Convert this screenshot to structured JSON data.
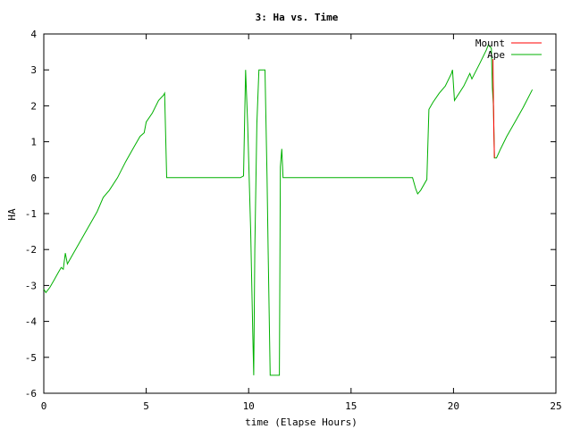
{
  "chart_data": {
    "type": "line",
    "title": "3: Ha vs. Time",
    "xlabel": "time (Elapse Hours)",
    "ylabel": "HA",
    "xlim": [
      0,
      25
    ],
    "ylim": [
      -6,
      4
    ],
    "xticks": [
      0,
      5,
      10,
      15,
      20,
      25
    ],
    "yticks": [
      -6,
      -5,
      -4,
      -3,
      -2,
      -1,
      0,
      1,
      2,
      3,
      4
    ],
    "grid": false,
    "legend_position": "top-right",
    "series": [
      {
        "name": "Mount",
        "color": "#ff0000",
        "points": [
          [
            21.93,
            3.3
          ],
          [
            21.95,
            2.1
          ],
          [
            21.97,
            1.3
          ],
          [
            22.0,
            0.55
          ]
        ]
      },
      {
        "name": "Ape",
        "color": "#00b000",
        "points": [
          [
            0.0,
            -3.1
          ],
          [
            0.1,
            -3.2
          ],
          [
            0.3,
            -3.05
          ],
          [
            0.5,
            -2.85
          ],
          [
            0.7,
            -2.65
          ],
          [
            0.85,
            -2.5
          ],
          [
            0.95,
            -2.55
          ],
          [
            1.05,
            -2.1
          ],
          [
            1.15,
            -2.4
          ],
          [
            1.4,
            -2.15
          ],
          [
            1.8,
            -1.75
          ],
          [
            2.2,
            -1.35
          ],
          [
            2.6,
            -0.95
          ],
          [
            2.9,
            -0.55
          ],
          [
            3.2,
            -0.35
          ],
          [
            3.6,
            0.0
          ],
          [
            4.0,
            0.45
          ],
          [
            4.4,
            0.85
          ],
          [
            4.7,
            1.15
          ],
          [
            4.9,
            1.25
          ],
          [
            5.0,
            1.55
          ],
          [
            5.3,
            1.8
          ],
          [
            5.6,
            2.15
          ],
          [
            5.85,
            2.3
          ],
          [
            5.9,
            2.35
          ],
          [
            6.0,
            0.0
          ],
          [
            8.5,
            0.0
          ],
          [
            9.6,
            0.0
          ],
          [
            9.75,
            0.05
          ],
          [
            9.85,
            3.0
          ],
          [
            9.95,
            1.5
          ],
          [
            10.1,
            -1.5
          ],
          [
            10.2,
            -4.3
          ],
          [
            10.25,
            -5.5
          ],
          [
            10.3,
            -2.0
          ],
          [
            10.4,
            1.5
          ],
          [
            10.5,
            3.0
          ],
          [
            10.7,
            3.0
          ],
          [
            10.8,
            3.0
          ],
          [
            10.9,
            0.0
          ],
          [
            10.95,
            -2.0
          ],
          [
            11.05,
            -5.5
          ],
          [
            11.5,
            -5.5
          ],
          [
            11.55,
            0.3
          ],
          [
            11.62,
            0.8
          ],
          [
            11.68,
            0.0
          ],
          [
            13.0,
            0.0
          ],
          [
            15.0,
            0.0
          ],
          [
            18.0,
            0.0
          ],
          [
            18.15,
            -0.3
          ],
          [
            18.25,
            -0.45
          ],
          [
            18.4,
            -0.35
          ],
          [
            18.7,
            -0.05
          ],
          [
            18.8,
            1.9
          ],
          [
            19.0,
            2.1
          ],
          [
            19.3,
            2.35
          ],
          [
            19.6,
            2.55
          ],
          [
            19.9,
            2.9
          ],
          [
            19.95,
            3.0
          ],
          [
            20.05,
            2.15
          ],
          [
            20.5,
            2.55
          ],
          [
            20.8,
            2.9
          ],
          [
            20.9,
            2.75
          ],
          [
            21.3,
            3.2
          ],
          [
            21.6,
            3.55
          ],
          [
            21.7,
            3.7
          ],
          [
            21.85,
            3.6
          ],
          [
            21.9,
            2.5
          ],
          [
            21.95,
            2.0
          ],
          [
            22.0,
            0.55
          ],
          [
            22.1,
            0.55
          ],
          [
            22.3,
            0.8
          ],
          [
            22.6,
            1.15
          ],
          [
            23.0,
            1.55
          ],
          [
            23.4,
            1.95
          ],
          [
            23.85,
            2.45
          ]
        ]
      }
    ]
  }
}
